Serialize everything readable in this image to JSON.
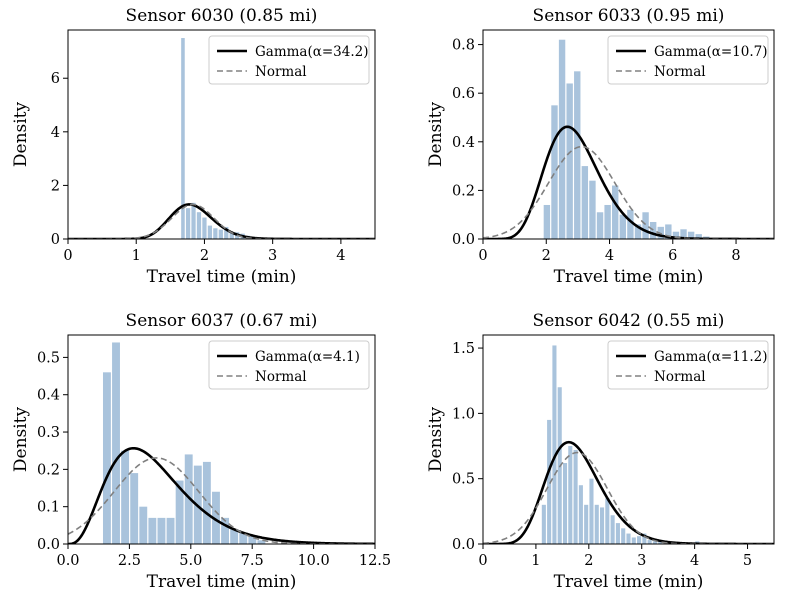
{
  "chart_data": [
    {
      "type": "bar",
      "title": "Sensor 6030 (0.85 mi)",
      "xlabel": "Travel time (min)",
      "ylabel": "Density",
      "xlim": [
        0,
        4.5
      ],
      "ylim": [
        0,
        7.8
      ],
      "xticks": [
        0,
        1,
        2,
        3,
        4
      ],
      "xtick_labels": [
        "0",
        "1",
        "2",
        "3",
        "4"
      ],
      "yticks": [
        0,
        2,
        4,
        6
      ],
      "ytick_labels": [
        "0",
        "2",
        "4",
        "6"
      ],
      "legend_position": "top-right",
      "legend": [
        "Gamma(α=34.2)",
        "Normal"
      ],
      "histogram": {
        "bins": [
          {
            "x0": 1.65,
            "x1": 1.72,
            "density": 7.5
          },
          {
            "x0": 1.72,
            "x1": 1.8,
            "density": 1.15
          },
          {
            "x0": 1.8,
            "x1": 1.88,
            "density": 1.35
          },
          {
            "x0": 1.88,
            "x1": 1.96,
            "density": 1.0
          },
          {
            "x0": 1.96,
            "x1": 2.04,
            "density": 0.8
          },
          {
            "x0": 2.04,
            "x1": 2.12,
            "density": 0.5
          },
          {
            "x0": 2.12,
            "x1": 2.2,
            "density": 0.4
          },
          {
            "x0": 2.2,
            "x1": 2.28,
            "density": 0.35
          },
          {
            "x0": 2.28,
            "x1": 2.36,
            "density": 0.45
          },
          {
            "x0": 2.36,
            "x1": 2.44,
            "density": 0.25
          },
          {
            "x0": 2.44,
            "x1": 2.52,
            "density": 0.25
          },
          {
            "x0": 2.52,
            "x1": 2.6,
            "density": 0.2
          },
          {
            "x0": 2.6,
            "x1": 2.68,
            "density": 0.12
          },
          {
            "x0": 2.68,
            "x1": 2.76,
            "density": 0.08
          },
          {
            "x0": 2.76,
            "x1": 2.84,
            "density": 0.05
          }
        ]
      },
      "series": [
        {
          "name": "Gamma(α=34.2)",
          "dist": "gamma",
          "shape": 34.2,
          "loc": 0,
          "scale": 0.0535
        },
        {
          "name": "Normal",
          "dist": "normal",
          "mean": 1.83,
          "sd": 0.31
        }
      ]
    },
    {
      "type": "bar",
      "title": "Sensor 6033 (0.95 mi)",
      "xlabel": "Travel time (min)",
      "ylabel": "Density",
      "xlim": [
        0,
        9.2
      ],
      "ylim": [
        0,
        0.86
      ],
      "xticks": [
        0,
        2,
        4,
        6,
        8
      ],
      "xtick_labels": [
        "0",
        "2",
        "4",
        "6",
        "8"
      ],
      "yticks": [
        0,
        0.2,
        0.4,
        0.6,
        0.8
      ],
      "ytick_labels": [
        "0.0",
        "0.2",
        "0.4",
        "0.6",
        "0.8"
      ],
      "legend_position": "top-right",
      "legend": [
        "Gamma(α=10.7)",
        "Normal"
      ],
      "histogram": {
        "bins": [
          {
            "x0": 1.9,
            "x1": 2.14,
            "density": 0.14
          },
          {
            "x0": 2.14,
            "x1": 2.38,
            "density": 0.55
          },
          {
            "x0": 2.38,
            "x1": 2.62,
            "density": 0.82
          },
          {
            "x0": 2.62,
            "x1": 2.86,
            "density": 0.64
          },
          {
            "x0": 2.86,
            "x1": 3.1,
            "density": 0.69
          },
          {
            "x0": 3.1,
            "x1": 3.34,
            "density": 0.3
          },
          {
            "x0": 3.34,
            "x1": 3.58,
            "density": 0.24
          },
          {
            "x0": 3.58,
            "x1": 3.82,
            "density": 0.11
          },
          {
            "x0": 3.82,
            "x1": 4.06,
            "density": 0.14
          },
          {
            "x0": 4.06,
            "x1": 4.3,
            "density": 0.22
          },
          {
            "x0": 4.3,
            "x1": 4.54,
            "density": 0.1
          },
          {
            "x0": 4.54,
            "x1": 4.78,
            "density": 0.12
          },
          {
            "x0": 4.78,
            "x1": 5.02,
            "density": 0.06
          },
          {
            "x0": 5.02,
            "x1": 5.26,
            "density": 0.11
          },
          {
            "x0": 5.26,
            "x1": 5.5,
            "density": 0.07
          },
          {
            "x0": 5.5,
            "x1": 5.74,
            "density": 0.05
          },
          {
            "x0": 5.74,
            "x1": 5.98,
            "density": 0.06
          },
          {
            "x0": 5.98,
            "x1": 6.22,
            "density": 0.03
          },
          {
            "x0": 6.22,
            "x1": 6.46,
            "density": 0.04
          },
          {
            "x0": 6.46,
            "x1": 6.7,
            "density": 0.03
          },
          {
            "x0": 6.7,
            "x1": 6.94,
            "density": 0.02
          },
          {
            "x0": 6.94,
            "x1": 7.18,
            "density": 0.01
          }
        ]
      },
      "series": [
        {
          "name": "Gamma(α=10.7)",
          "dist": "gamma",
          "shape": 10.7,
          "loc": 0,
          "scale": 0.275
        },
        {
          "name": "Normal",
          "dist": "normal",
          "mean": 3.12,
          "sd": 1.05
        }
      ]
    },
    {
      "type": "bar",
      "title": "Sensor 6037 (0.67 mi)",
      "xlabel": "Travel time (min)",
      "ylabel": "Density",
      "xlim": [
        0,
        12.5
      ],
      "ylim": [
        0,
        0.56
      ],
      "xticks": [
        0,
        2.5,
        5,
        7.5,
        10,
        12.5
      ],
      "xtick_labels": [
        "0.0",
        "2.5",
        "5.0",
        "7.5",
        "10.0",
        "12.5"
      ],
      "yticks": [
        0,
        0.1,
        0.2,
        0.3,
        0.4,
        0.5
      ],
      "ytick_labels": [
        "0.0",
        "0.1",
        "0.2",
        "0.3",
        "0.4",
        "0.5"
      ],
      "legend_position": "top-right",
      "legend": [
        "Gamma(α=4.1)",
        "Normal"
      ],
      "histogram": {
        "bins": [
          {
            "x0": 1.4,
            "x1": 1.77,
            "density": 0.46
          },
          {
            "x0": 1.77,
            "x1": 2.14,
            "density": 0.54
          },
          {
            "x0": 2.14,
            "x1": 2.51,
            "density": 0.25
          },
          {
            "x0": 2.51,
            "x1": 2.88,
            "density": 0.19
          },
          {
            "x0": 2.88,
            "x1": 3.25,
            "density": 0.1
          },
          {
            "x0": 3.25,
            "x1": 3.62,
            "density": 0.07
          },
          {
            "x0": 3.62,
            "x1": 3.99,
            "density": 0.07
          },
          {
            "x0": 3.99,
            "x1": 4.36,
            "density": 0.07
          },
          {
            "x0": 4.36,
            "x1": 4.73,
            "density": 0.17
          },
          {
            "x0": 4.73,
            "x1": 5.1,
            "density": 0.24
          },
          {
            "x0": 5.1,
            "x1": 5.47,
            "density": 0.21
          },
          {
            "x0": 5.47,
            "x1": 5.84,
            "density": 0.22
          },
          {
            "x0": 5.84,
            "x1": 6.21,
            "density": 0.14
          },
          {
            "x0": 6.21,
            "x1": 6.58,
            "density": 0.07
          },
          {
            "x0": 6.58,
            "x1": 6.95,
            "density": 0.04
          },
          {
            "x0": 6.95,
            "x1": 7.32,
            "density": 0.03
          },
          {
            "x0": 7.32,
            "x1": 7.69,
            "density": 0.02
          },
          {
            "x0": 7.69,
            "x1": 8.06,
            "density": 0.01
          }
        ]
      },
      "series": [
        {
          "name": "Gamma(α=4.1)",
          "dist": "gamma",
          "shape": 4.1,
          "loc": 0,
          "scale": 0.86
        },
        {
          "name": "Normal",
          "dist": "normal",
          "mean": 3.6,
          "sd": 1.73
        }
      ]
    },
    {
      "type": "bar",
      "title": "Sensor 6042 (0.55 mi)",
      "xlabel": "Travel time (min)",
      "ylabel": "Density",
      "xlim": [
        0,
        5.5
      ],
      "ylim": [
        0,
        1.6
      ],
      "xticks": [
        0,
        1,
        2,
        3,
        4,
        5
      ],
      "xtick_labels": [
        "0",
        "1",
        "2",
        "3",
        "4",
        "5"
      ],
      "yticks": [
        0,
        0.5,
        1.0,
        1.5
      ],
      "ytick_labels": [
        "0.0",
        "0.5",
        "1.0",
        "1.5"
      ],
      "legend_position": "top-right",
      "legend": [
        "Gamma(α=11.2)",
        "Normal"
      ],
      "histogram": {
        "bins": [
          {
            "x0": 1.1,
            "x1": 1.2,
            "density": 0.3
          },
          {
            "x0": 1.2,
            "x1": 1.3,
            "density": 0.95
          },
          {
            "x0": 1.3,
            "x1": 1.4,
            "density": 1.52
          },
          {
            "x0": 1.4,
            "x1": 1.5,
            "density": 1.2
          },
          {
            "x0": 1.5,
            "x1": 1.6,
            "density": 0.62
          },
          {
            "x0": 1.6,
            "x1": 1.7,
            "density": 0.75
          },
          {
            "x0": 1.7,
            "x1": 1.8,
            "density": 0.72
          },
          {
            "x0": 1.8,
            "x1": 1.9,
            "density": 0.45
          },
          {
            "x0": 1.9,
            "x1": 2.0,
            "density": 0.3
          },
          {
            "x0": 2.0,
            "x1": 2.1,
            "density": 0.5
          },
          {
            "x0": 2.1,
            "x1": 2.2,
            "density": 0.3
          },
          {
            "x0": 2.2,
            "x1": 2.3,
            "density": 0.28
          },
          {
            "x0": 2.3,
            "x1": 2.4,
            "density": 0.35
          },
          {
            "x0": 2.4,
            "x1": 2.5,
            "density": 0.22
          },
          {
            "x0": 2.5,
            "x1": 2.6,
            "density": 0.16
          },
          {
            "x0": 2.6,
            "x1": 2.7,
            "density": 0.12
          },
          {
            "x0": 2.7,
            "x1": 2.8,
            "density": 0.08
          },
          {
            "x0": 2.8,
            "x1": 2.9,
            "density": 0.05
          },
          {
            "x0": 2.9,
            "x1": 3.0,
            "density": 0.06
          },
          {
            "x0": 3.0,
            "x1": 3.1,
            "density": 0.08
          },
          {
            "x0": 3.1,
            "x1": 3.2,
            "density": 0.03
          },
          {
            "x0": 3.2,
            "x1": 3.3,
            "density": 0.02
          },
          {
            "x0": 3.3,
            "x1": 3.4,
            "density": 0.02
          },
          {
            "x0": 3.4,
            "x1": 3.5,
            "density": 0.01
          },
          {
            "x0": 3.5,
            "x1": 3.6,
            "density": 0.01
          },
          {
            "x0": 4.0,
            "x1": 4.1,
            "density": 0.02
          },
          {
            "x0": 4.2,
            "x1": 4.3,
            "density": 0.01
          },
          {
            "x0": 4.4,
            "x1": 4.5,
            "density": 0.01
          }
        ]
      },
      "series": [
        {
          "name": "Gamma(α=11.2)",
          "dist": "gamma",
          "shape": 11.2,
          "loc": 0,
          "scale": 0.159
        },
        {
          "name": "Normal",
          "dist": "normal",
          "mean": 1.78,
          "sd": 0.57
        }
      ]
    }
  ],
  "colors": {
    "histogram": "#a9c3dc",
    "gamma_line": "#000000",
    "normal_line": "#808080"
  }
}
